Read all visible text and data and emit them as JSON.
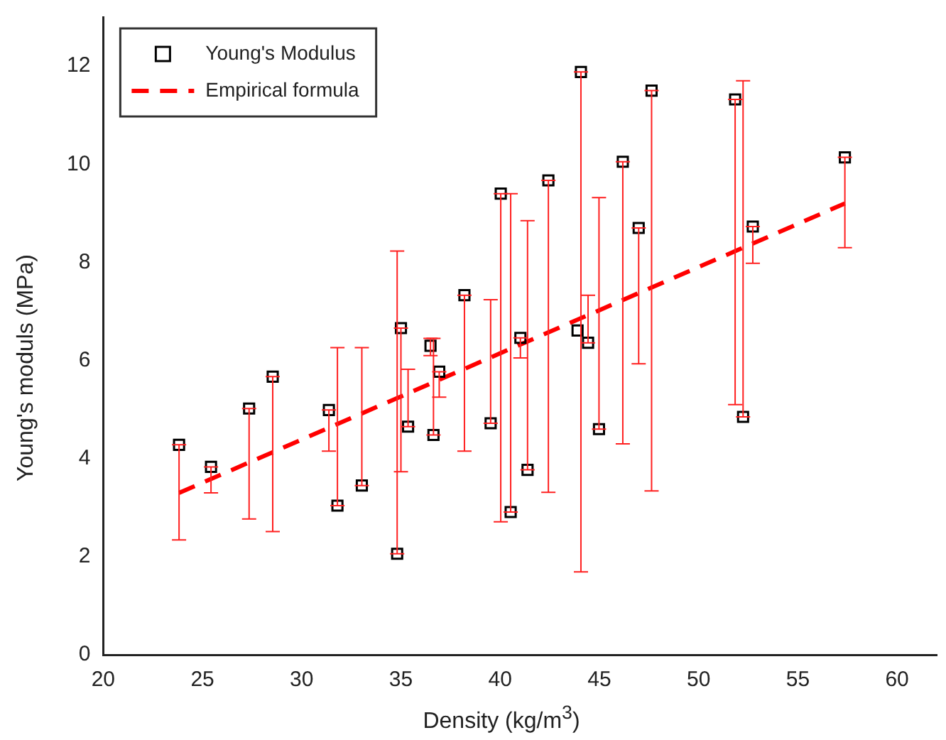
{
  "chart_data": {
    "type": "scatter",
    "xlabel": "Density (kg/m$^{3}$)",
    "ylabel": "Young's moduls (MPa)",
    "xlim": [
      20,
      62
    ],
    "ylim": [
      0,
      13
    ],
    "xticks": [
      20,
      25,
      30,
      35,
      40,
      45,
      50,
      55,
      60
    ],
    "yticks": [
      0,
      2,
      4,
      6,
      8,
      10,
      12
    ],
    "grid": false,
    "legend": "top left",
    "series": [
      {
        "name": "Young's Modulus",
        "type": "scatter",
        "color": "#000000",
        "marker": "square",
        "x": [
          23.82,
          25.43,
          27.35,
          28.54,
          31.37,
          31.8,
          33.03,
          34.81,
          35.0,
          35.36,
          36.49,
          36.64,
          36.93,
          38.2,
          39.52,
          40.03,
          40.53,
          41.02,
          41.38,
          42.43,
          43.9,
          44.07,
          44.43,
          44.98,
          46.18,
          46.98,
          47.63,
          51.84,
          52.24,
          52.73,
          57.37
        ],
        "values": [
          4.28,
          3.83,
          5.02,
          5.67,
          4.99,
          3.04,
          3.45,
          2.06,
          6.66,
          4.65,
          6.3,
          4.48,
          5.77,
          7.33,
          4.72,
          9.4,
          2.91,
          6.46,
          3.77,
          9.67,
          6.61,
          11.88,
          6.36,
          4.6,
          10.05,
          8.7,
          11.5,
          11.32,
          4.85,
          8.73,
          10.14
        ],
        "errors": [
          [
            2.34,
            4.28
          ],
          [
            3.3,
            3.83
          ],
          [
            2.77,
            5.02
          ],
          [
            2.51,
            5.67
          ],
          [
            4.15,
            4.99
          ],
          [
            3.04,
            6.26
          ],
          [
            3.45,
            6.26
          ],
          [
            2.06,
            8.23
          ],
          [
            3.73,
            6.66
          ],
          [
            4.65,
            5.82
          ],
          [
            6.1,
            6.45
          ],
          [
            4.48,
            6.45
          ],
          [
            5.25,
            5.77
          ],
          [
            4.15,
            7.33
          ],
          [
            4.72,
            7.24
          ],
          [
            2.71,
            9.4
          ],
          [
            2.91,
            9.4
          ],
          [
            6.05,
            6.46
          ],
          [
            3.77,
            8.85
          ],
          [
            3.31,
            9.67
          ],
          null,
          [
            1.69,
            11.88
          ],
          [
            6.36,
            7.33
          ],
          [
            4.6,
            9.32
          ],
          [
            4.3,
            10.05
          ],
          [
            5.93,
            8.7
          ],
          [
            3.34,
            11.5
          ],
          [
            5.1,
            11.32
          ],
          [
            4.85,
            11.7
          ],
          [
            7.98,
            8.73
          ],
          [
            8.3,
            10.14
          ]
        ]
      },
      {
        "name": "Empirical formula",
        "type": "line",
        "color": "#ff0000",
        "line_style": "dashed",
        "marker": "none",
        "x": [
          23.82,
          57.37
        ],
        "values": [
          3.3,
          9.2
        ]
      }
    ]
  }
}
